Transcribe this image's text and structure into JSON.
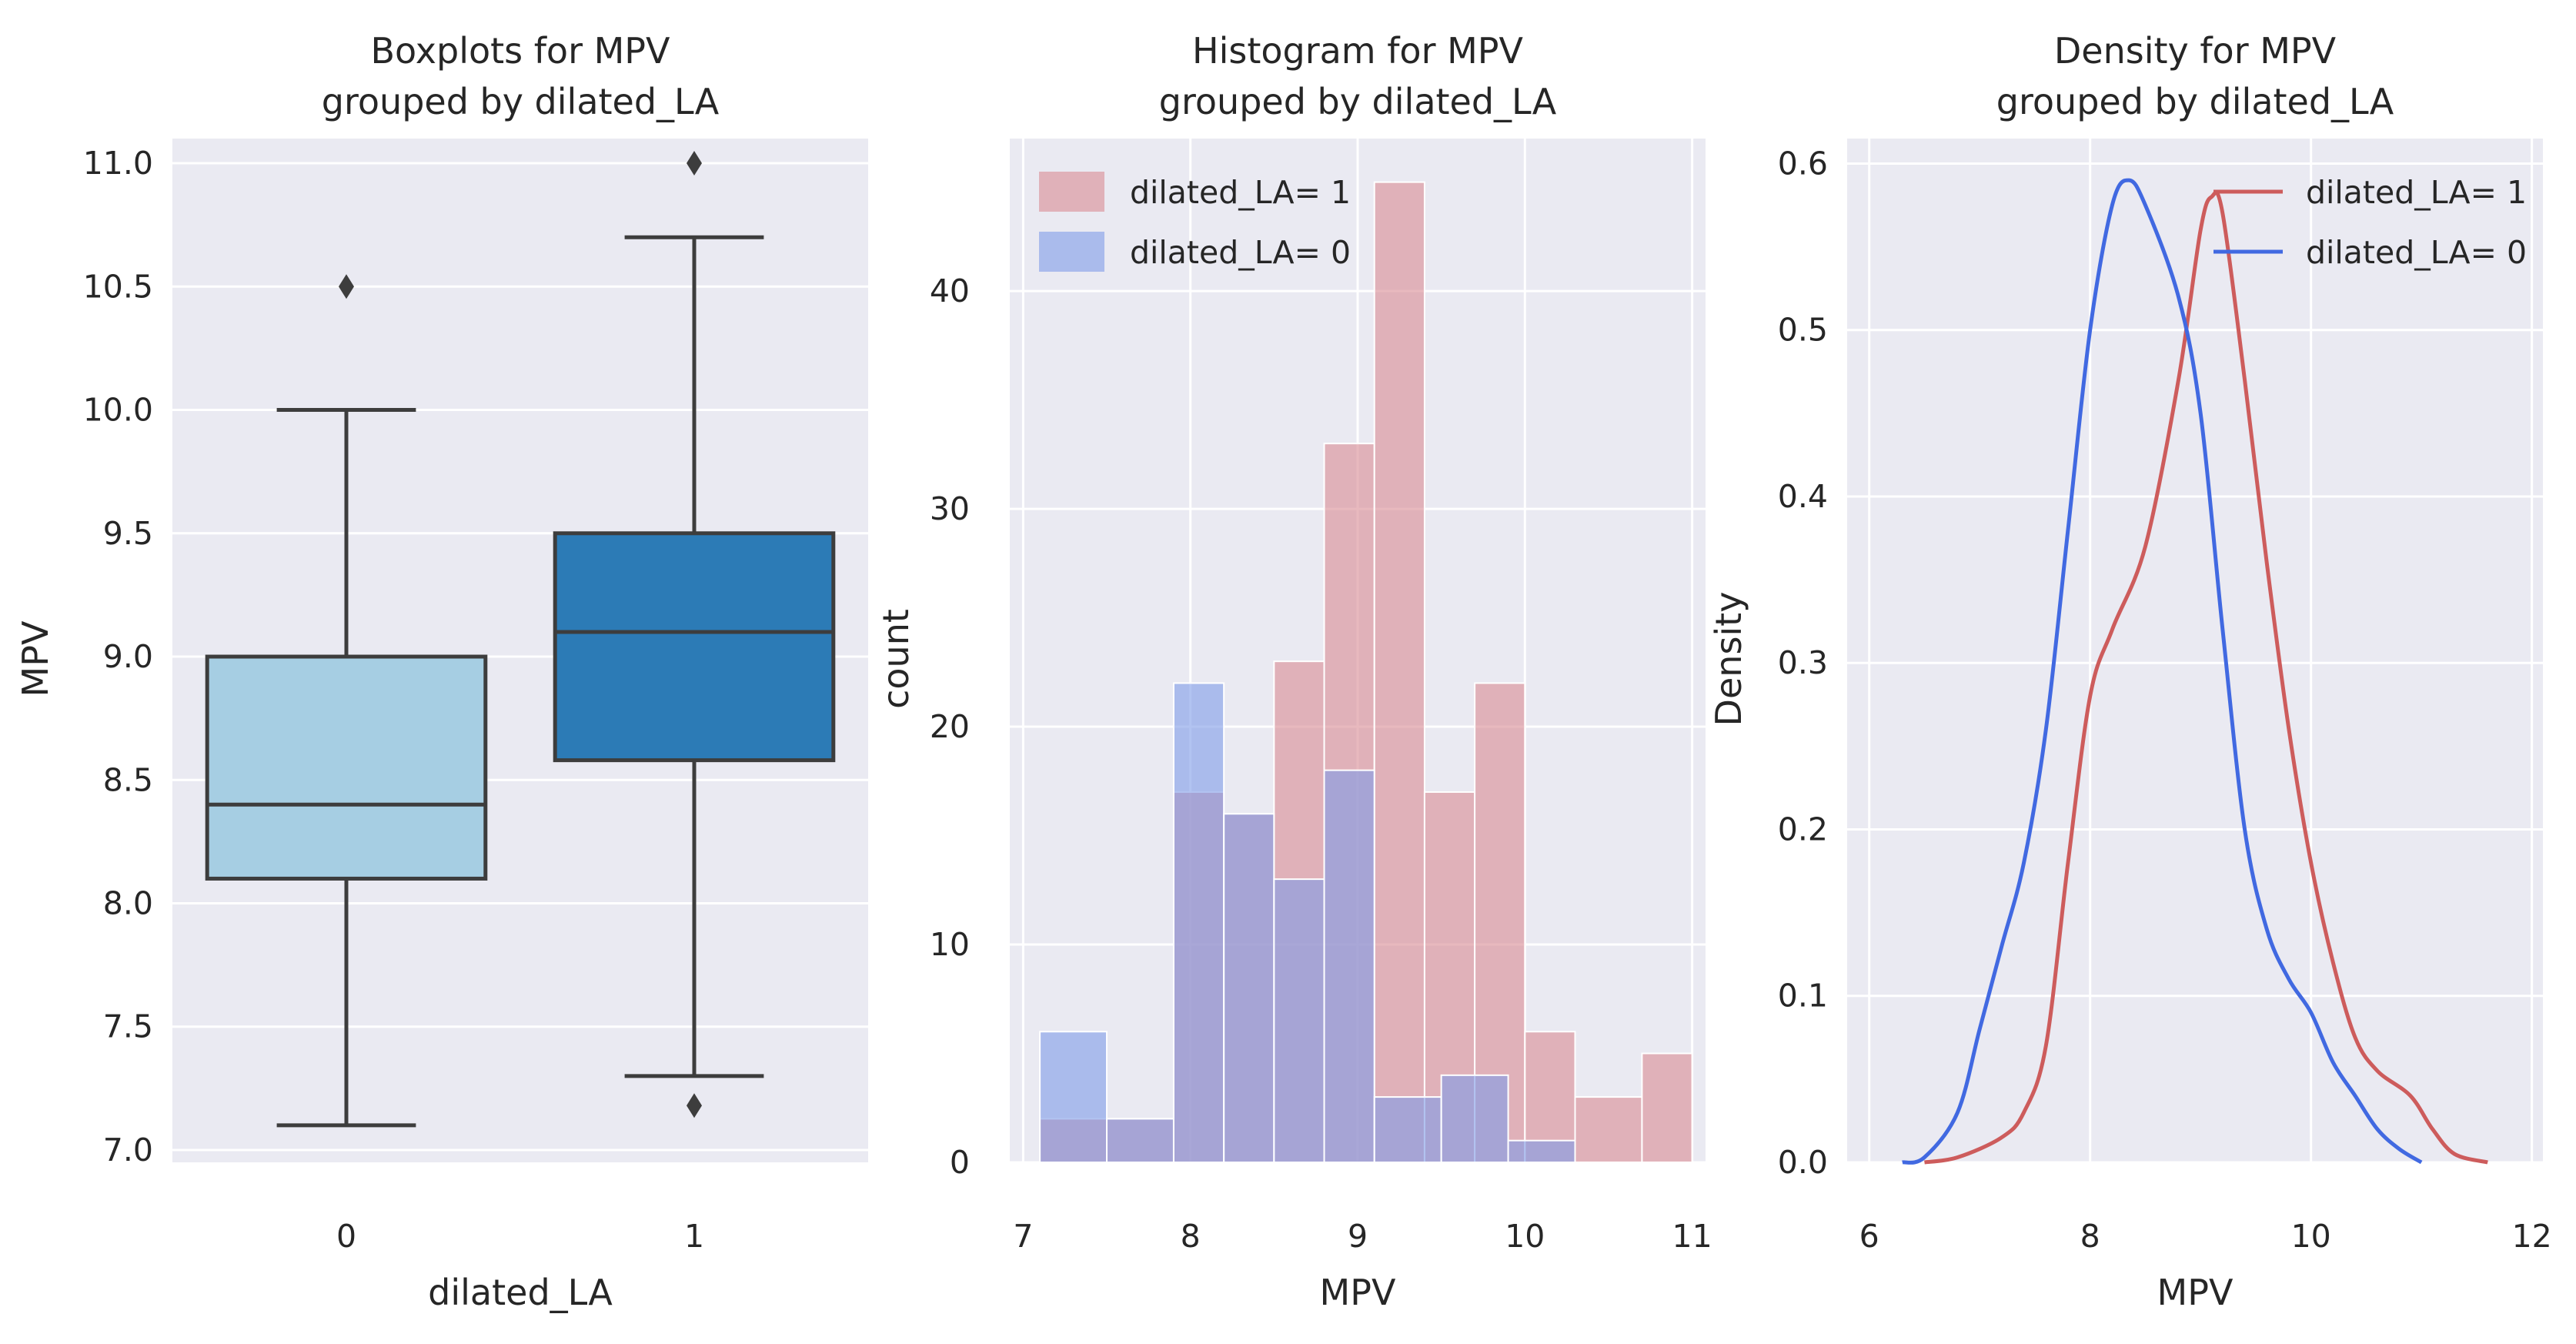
{
  "chart_data": [
    {
      "type": "box",
      "title_line1": "Boxplots for MPV",
      "title_line2": "grouped by dilated_LA",
      "xlabel": "dilated_LA",
      "ylabel": "MPV",
      "ylim": [
        6.95,
        11.1
      ],
      "yticks": [
        "7.0",
        "7.5",
        "8.0",
        "8.5",
        "9.0",
        "9.5",
        "10.0",
        "10.5",
        "11.0"
      ],
      "categories": [
        "0",
        "1"
      ],
      "boxes": [
        {
          "category": "0",
          "whisker_low": 7.1,
          "q1": 8.1,
          "median": 8.4,
          "q3": 9.0,
          "whisker_high": 10.0,
          "outliers": [
            10.5
          ],
          "color": "#a6cee3"
        },
        {
          "category": "1",
          "whisker_low": 7.3,
          "q1": 8.58,
          "median": 9.1,
          "q3": 9.5,
          "whisker_high": 10.7,
          "outliers": [
            11.0,
            7.18
          ],
          "color": "#2c7bb6"
        }
      ]
    },
    {
      "type": "histogram",
      "title_line1": "Histogram for MPV",
      "title_line2": "grouped by dilated_LA",
      "xlabel": "MPV",
      "ylabel": "count",
      "xlim": [
        6.92,
        11.08
      ],
      "ylim": [
        0,
        47
      ],
      "xticks": [
        "7",
        "8",
        "9",
        "10",
        "11"
      ],
      "yticks": [
        "0",
        "10",
        "20",
        "30",
        "40"
      ],
      "series": [
        {
          "name": "dilated_LA= 1",
          "color": "#d98b93",
          "bins": [
            [
              7.1,
              7.5,
              2
            ],
            [
              7.5,
              7.9,
              2
            ],
            [
              7.9,
              8.2,
              17
            ],
            [
              8.2,
              8.5,
              16
            ],
            [
              8.5,
              8.8,
              23
            ],
            [
              8.8,
              9.1,
              33
            ],
            [
              9.1,
              9.4,
              45
            ],
            [
              9.4,
              9.7,
              17
            ],
            [
              9.7,
              10.0,
              22
            ],
            [
              10.0,
              10.3,
              6
            ],
            [
              10.3,
              10.7,
              3
            ],
            [
              10.7,
              11.0,
              5
            ]
          ]
        },
        {
          "name": "dilated_LA= 0",
          "color": "#7f9be8",
          "bins": [
            [
              7.1,
              7.5,
              6
            ],
            [
              7.5,
              7.9,
              2
            ],
            [
              7.9,
              8.2,
              22
            ],
            [
              8.2,
              8.5,
              16
            ],
            [
              8.5,
              8.8,
              13
            ],
            [
              8.8,
              9.1,
              18
            ],
            [
              9.1,
              9.5,
              3
            ],
            [
              9.5,
              9.9,
              4
            ],
            [
              9.9,
              10.3,
              1
            ]
          ]
        }
      ],
      "legend": [
        "dilated_LA= 1",
        "dilated_LA= 0"
      ]
    },
    {
      "type": "line",
      "title_line1": "Density for MPV",
      "title_line2": "grouped by dilated_LA",
      "xlabel": "MPV",
      "ylabel": "Density",
      "xlim": [
        5.8,
        12.1
      ],
      "ylim": [
        0,
        0.615
      ],
      "xticks": [
        "6",
        "8",
        "10",
        "12"
      ],
      "yticks": [
        "0.0",
        "0.1",
        "0.2",
        "0.3",
        "0.4",
        "0.5",
        "0.6"
      ],
      "series": [
        {
          "name": "dilated_LA= 1",
          "color": "#cd5c5c",
          "points": [
            [
              6.5,
              0.0
            ],
            [
              6.8,
              0.003
            ],
            [
              7.2,
              0.015
            ],
            [
              7.4,
              0.03
            ],
            [
              7.6,
              0.07
            ],
            [
              7.8,
              0.18
            ],
            [
              8.0,
              0.28
            ],
            [
              8.2,
              0.32
            ],
            [
              8.5,
              0.37
            ],
            [
              8.8,
              0.47
            ],
            [
              9.0,
              0.56
            ],
            [
              9.1,
              0.58
            ],
            [
              9.2,
              0.57
            ],
            [
              9.4,
              0.47
            ],
            [
              9.6,
              0.36
            ],
            [
              9.8,
              0.26
            ],
            [
              10.0,
              0.18
            ],
            [
              10.2,
              0.12
            ],
            [
              10.4,
              0.075
            ],
            [
              10.6,
              0.055
            ],
            [
              10.9,
              0.04
            ],
            [
              11.1,
              0.02
            ],
            [
              11.3,
              0.005
            ],
            [
              11.6,
              0.0
            ]
          ]
        },
        {
          "name": "dilated_LA= 0",
          "color": "#4169e1",
          "points": [
            [
              6.3,
              0.0
            ],
            [
              6.5,
              0.003
            ],
            [
              6.8,
              0.03
            ],
            [
              7.0,
              0.08
            ],
            [
              7.2,
              0.13
            ],
            [
              7.4,
              0.18
            ],
            [
              7.6,
              0.26
            ],
            [
              7.8,
              0.38
            ],
            [
              8.0,
              0.5
            ],
            [
              8.2,
              0.575
            ],
            [
              8.35,
              0.59
            ],
            [
              8.5,
              0.575
            ],
            [
              8.8,
              0.52
            ],
            [
              9.0,
              0.45
            ],
            [
              9.2,
              0.32
            ],
            [
              9.4,
              0.2
            ],
            [
              9.6,
              0.14
            ],
            [
              9.8,
              0.11
            ],
            [
              10.0,
              0.09
            ],
            [
              10.2,
              0.06
            ],
            [
              10.4,
              0.04
            ],
            [
              10.6,
              0.02
            ],
            [
              10.8,
              0.008
            ],
            [
              11.0,
              0.0
            ]
          ]
        }
      ],
      "legend": [
        "dilated_LA= 1",
        "dilated_LA= 0"
      ]
    }
  ]
}
